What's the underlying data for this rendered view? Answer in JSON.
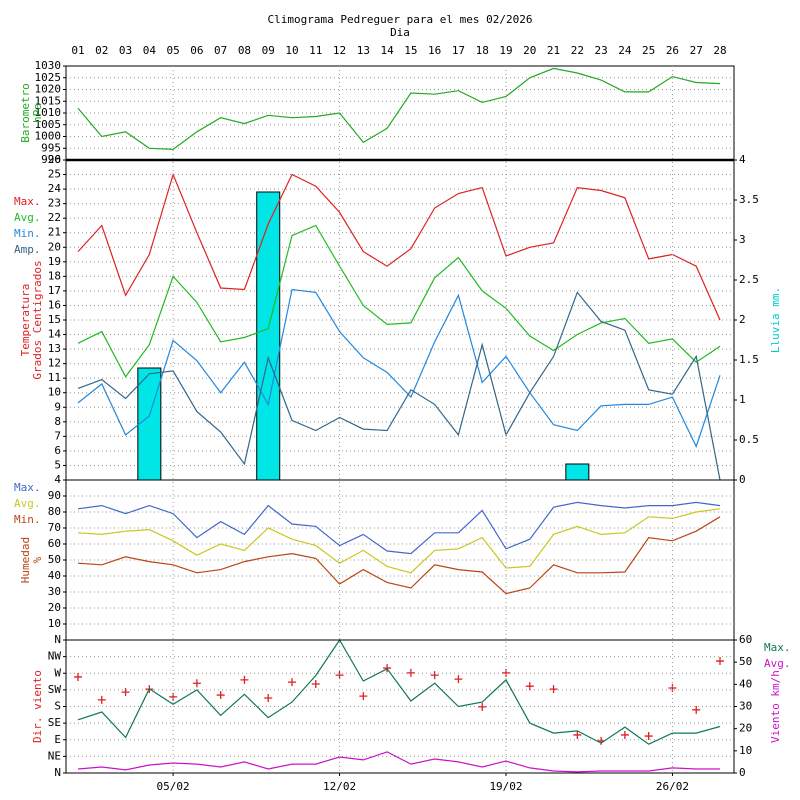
{
  "chart_data": [
    {
      "type": "line",
      "title": "Climograma Pedreguer para el mes 02/2026",
      "x_label": "Dia",
      "categories": [
        "01",
        "02",
        "03",
        "04",
        "05",
        "06",
        "07",
        "08",
        "09",
        "10",
        "11",
        "12",
        "13",
        "14",
        "15",
        "16",
        "17",
        "18",
        "19",
        "20",
        "21",
        "22",
        "23",
        "24",
        "25",
        "26",
        "27",
        "28"
      ],
      "y_label": [
        "Barometro",
        "hPa"
      ],
      "y_label_color": "#22aa22",
      "ylim": [
        990,
        1030
      ],
      "yticks": [
        990,
        995,
        1000,
        1005,
        1010,
        1015,
        1020,
        1025,
        1030
      ],
      "grid": true,
      "series": [
        {
          "color": "#22aa22",
          "values": [
            1012,
            1000,
            1002,
            995,
            994.5,
            1002,
            1008,
            1005.5,
            1009,
            1008,
            1008.5,
            1010,
            997.5,
            1003.5,
            1018.5,
            1018,
            1019.5,
            1014.5,
            1017,
            1025,
            1029,
            1027,
            1024,
            1019,
            1019,
            1025.5,
            1023,
            1022.5
          ]
        }
      ]
    },
    {
      "type": "line",
      "y_label": [
        "Temperatura",
        "Grados Centigrados"
      ],
      "y_label_color": "#dd2222",
      "y2_label": "Lluvia mm.",
      "y2_label_color": "#00cccc",
      "legend": "left",
      "ylim": [
        4,
        26
      ],
      "yticks": [
        4,
        5,
        6,
        7,
        8,
        9,
        10,
        11,
        12,
        13,
        14,
        15,
        16,
        17,
        18,
        19,
        20,
        21,
        22,
        23,
        24,
        25,
        26
      ],
      "grid": true,
      "y2lim": [
        0,
        4
      ],
      "y2ticks": [
        0,
        0.5,
        1,
        1.5,
        2,
        2.5,
        3,
        3.5,
        4
      ],
      "series": [
        {
          "type": "bar",
          "axis": "y2",
          "color": "#00e5e5",
          "values": [
            0,
            0,
            0,
            1.4,
            0,
            0,
            0,
            0,
            3.6,
            0,
            0,
            0,
            0,
            0,
            0,
            0,
            0,
            0,
            0,
            0,
            0,
            0.2,
            0,
            0,
            0,
            0,
            0,
            0
          ]
        },
        {
          "name": "Max.",
          "color": "#dd2222",
          "values": [
            19.7,
            21.5,
            16.7,
            19.5,
            25,
            21,
            17.2,
            17.1,
            21.6,
            25,
            24.2,
            22.4,
            19.7,
            18.7,
            19.9,
            22.7,
            23.7,
            24.1,
            19.4,
            20,
            20.3,
            24.1,
            23.9,
            23.4,
            19.2,
            19.5,
            18.7,
            15
          ]
        },
        {
          "name": "Avg.",
          "color": "#22bb22",
          "values": [
            13.4,
            14.2,
            11.1,
            13.3,
            18,
            16.2,
            13.5,
            13.8,
            14.4,
            20.8,
            21.5,
            18.7,
            16,
            14.7,
            14.8,
            17.9,
            19.3,
            17,
            15.8,
            13.9,
            12.9,
            14,
            14.8,
            15.1,
            13.4,
            13.7,
            12.1,
            13.2
          ]
        },
        {
          "name": "Min.",
          "color": "#2288dd",
          "values": [
            9.3,
            10.6,
            7.1,
            8.4,
            13.6,
            12.2,
            10,
            12.1,
            9.2,
            17.1,
            16.9,
            14.2,
            12.4,
            11.4,
            9.7,
            13.5,
            16.7,
            10.7,
            12.5,
            10,
            7.8,
            7.4,
            9.1,
            9.2,
            9.2,
            9.7,
            6.3,
            11.2
          ]
        },
        {
          "name": "Amp.",
          "color": "#336688",
          "values": [
            10.3,
            10.9,
            9.6,
            11.3,
            11.5,
            8.7,
            7.3,
            5.1,
            12.4,
            8.1,
            7.4,
            8.3,
            7.5,
            7.4,
            10.2,
            9.2,
            7.1,
            13.3,
            7.1,
            10,
            12.5,
            16.9,
            14.9,
            14.3,
            10.2,
            9.9,
            12.5,
            4
          ]
        }
      ]
    },
    {
      "type": "line",
      "y_label": [
        "Humedad",
        "%"
      ],
      "y_label_color": "#bb4411",
      "legend": "left",
      "ylim": [
        0,
        100
      ],
      "yticks": [
        10,
        20,
        30,
        40,
        50,
        60,
        70,
        80,
        90
      ],
      "grid": true,
      "series": [
        {
          "name": "Max.",
          "color": "#4466cc",
          "values": [
            82,
            84,
            79,
            84,
            79,
            64,
            74,
            66,
            84,
            72.5,
            71,
            59,
            66,
            55.6,
            54,
            67,
            67,
            81,
            57,
            63,
            83,
            86,
            84,
            82.5,
            84,
            84,
            86,
            84
          ]
        },
        {
          "name": "Avg.",
          "color": "#c8c822",
          "values": [
            67,
            66,
            68,
            69,
            62,
            53,
            60,
            56,
            70,
            63,
            59,
            48,
            56,
            46,
            42,
            56,
            57,
            64,
            45,
            46,
            66,
            71,
            66,
            67,
            77,
            76,
            80,
            82
          ]
        },
        {
          "name": "Min.",
          "color": "#bb4411",
          "values": [
            48,
            47,
            52,
            49,
            47,
            42,
            44,
            49,
            52,
            54,
            51,
            35,
            44,
            36,
            32.5,
            47,
            44,
            42.5,
            29,
            32.5,
            47,
            42,
            42,
            42.5,
            64,
            62,
            68,
            77
          ]
        }
      ]
    },
    {
      "type": "line",
      "y_label": [
        "Dir. viento"
      ],
      "y_label_color": "#dd2222",
      "y2_label": "Viento km/h",
      "y2_label_color": "#cc11cc",
      "legend": "right",
      "ylim": [
        0,
        360
      ],
      "yticks": [
        {
          "value": 0,
          "label": "N"
        },
        {
          "value": 45,
          "label": "NE"
        },
        {
          "value": 90,
          "label": "E"
        },
        {
          "value": 135,
          "label": "SE"
        },
        {
          "value": 180,
          "label": "S"
        },
        {
          "value": 225,
          "label": "SW"
        },
        {
          "value": 270,
          "label": "W"
        },
        {
          "value": 315,
          "label": "NW"
        },
        {
          "value": 360,
          "label": "N"
        }
      ],
      "grid": true,
      "y2lim": [
        0,
        60
      ],
      "y2ticks": [
        0,
        10,
        20,
        30,
        40,
        50,
        60
      ],
      "xticks": [
        {
          "value": 5,
          "label": "05/02"
        },
        {
          "value": 12,
          "label": "12/02"
        },
        {
          "value": 19,
          "label": "19/02"
        },
        {
          "value": 26,
          "label": "26/02"
        }
      ],
      "series": [
        {
          "marker": "+",
          "color": "#dd2222",
          "values": [
            260,
            198,
            219,
            227,
            206,
            243,
            211,
            252,
            203,
            246,
            241,
            265,
            208,
            284,
            271,
            265,
            254,
            179,
            271,
            235,
            227,
            103,
            87,
            103,
            100,
            230,
            171,
            303
          ]
        },
        {
          "name": "Max.",
          "axis": "y2",
          "color": "#117755",
          "values": [
            24,
            27.5,
            16,
            38,
            31,
            37.5,
            26,
            35.5,
            25,
            32,
            44,
            60,
            41.5,
            47,
            32.5,
            40.5,
            30,
            32,
            42,
            22.5,
            18,
            19,
            13.5,
            20.7,
            13,
            18,
            18,
            21
          ]
        },
        {
          "name": "Avg.",
          "axis": "y2",
          "color": "#cc11cc",
          "values": [
            1.8,
            2.7,
            1.4,
            3.6,
            4.5,
            4,
            2.7,
            5,
            1.8,
            4,
            4,
            7.2,
            5.9,
            9.5,
            4,
            6.3,
            5,
            2.7,
            5.4,
            2.3,
            0.9,
            0.5,
            0.9,
            0.9,
            0.9,
            2.3,
            1.8,
            1.8
          ]
        }
      ]
    }
  ]
}
